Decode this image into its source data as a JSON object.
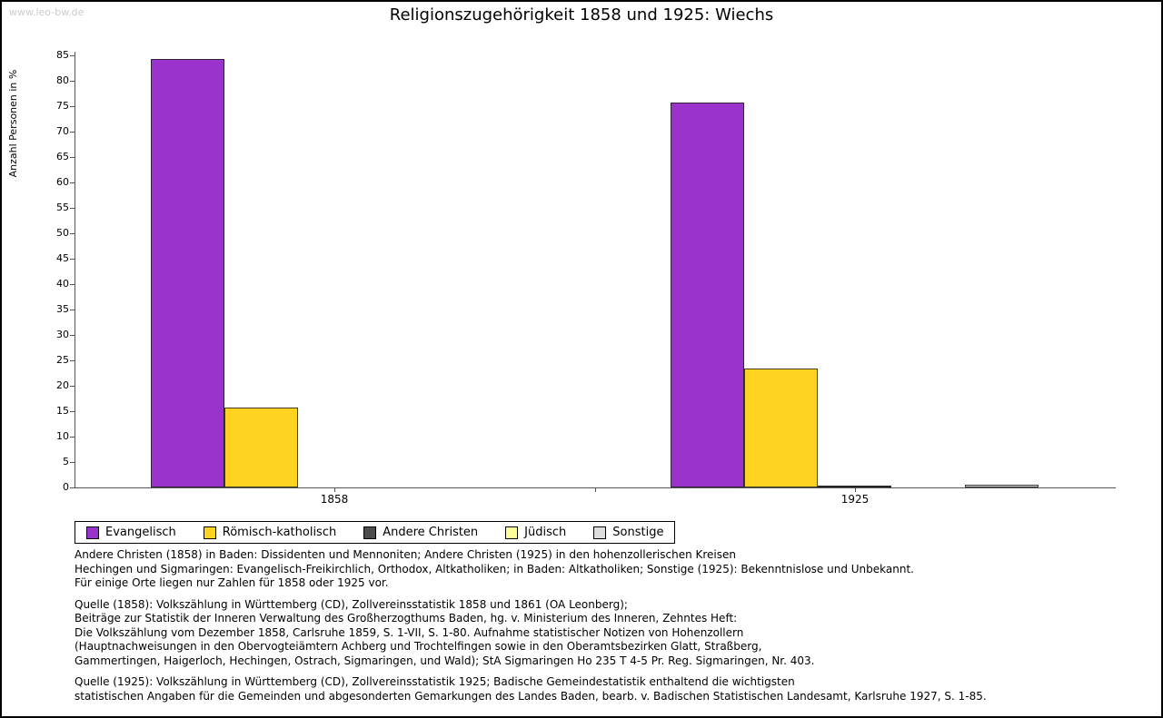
{
  "watermark": "www.leo-bw.de",
  "chart_data": {
    "type": "bar",
    "title": "Religionszugehörigkeit 1858 und 1925: Wiechs",
    "xlabel": "",
    "ylabel": "Anzahl Personen in %",
    "categories": [
      "1858",
      "1925"
    ],
    "series": [
      {
        "name": "Evangelisch",
        "color": "#9933CC",
        "values": [
          84.3,
          75.8
        ]
      },
      {
        "name": "Römisch-katholisch",
        "color": "#FFD320",
        "values": [
          15.7,
          23.4
        ]
      },
      {
        "name": "Andere Christen",
        "color": "#4D4D4D",
        "values": [
          0,
          0.3
        ]
      },
      {
        "name": "Jüdisch",
        "color": "#FFFF99",
        "values": [
          0,
          0
        ]
      },
      {
        "name": "Sonstige",
        "color": "#DDDDDD",
        "values": [
          0,
          0.5
        ]
      }
    ],
    "ylim": [
      0,
      85
    ],
    "ytick_step": 5,
    "grid": false,
    "legend_position": "bottom-left"
  },
  "footnotes": {
    "para1": "Andere Christen (1858) in Baden: Dissidenten und Mennoniten; Andere Christen (1925) in den hohenzollerischen Kreisen\nHechingen und Sigmaringen: Evangelisch-Freikirchlich, Orthodox, Altkatholiken; in Baden: Altkatholiken; Sonstige (1925): Bekenntnislose und Unbekannt.\nFür einige Orte liegen nur Zahlen für 1858 oder 1925 vor.",
    "para2": "Quelle (1858): Volkszählung in Württemberg (CD), Zollvereinsstatistik 1858 und 1861 (OA Leonberg);\nBeiträge zur Statistik der Inneren Verwaltung des Großherzogthums Baden, hg. v. Ministerium des Inneren, Zehntes Heft:\nDie Volkszählung vom Dezember 1858, Carlsruhe 1859, S. 1-VII, S. 1-80. Aufnahme statistischer Notizen von Hohenzollern\n(Hauptnachweisungen in den Obervogteiämtern Achberg und Trochtelfingen sowie in den Oberamtsbezirken Glatt, Straßberg,\nGammertingen, Haigerloch, Hechingen, Ostrach, Sigmaringen, und Wald); StA Sigmaringen Ho 235 T 4-5 Pr. Reg. Sigmaringen, Nr. 403.",
    "para3": "Quelle (1925): Volkszählung in Württemberg (CD), Zollvereinsstatistik 1925; Badische Gemeindestatistik enthaltend die wichtigsten\nstatistischen Angaben für die Gemeinden und abgesonderten Gemarkungen des Landes Baden, bearb. v. Badischen Statistischen Landesamt, Karlsruhe 1927, S. 1-85."
  }
}
